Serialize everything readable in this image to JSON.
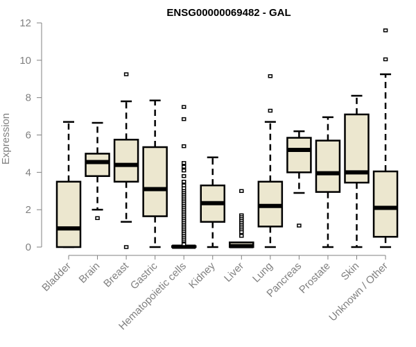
{
  "chart_data": {
    "type": "box",
    "title": "ENSG00000069482 - GAL",
    "xlabel": "",
    "ylabel": "Expression",
    "ylim": [
      0,
      12
    ],
    "yticks": [
      0,
      2,
      4,
      6,
      8,
      10,
      12
    ],
    "grid": false,
    "colors": {
      "box_fill": "#ece7cf",
      "stroke": "#000000",
      "axis": "#808080",
      "label": "#808080",
      "title": "#000000"
    },
    "categories": [
      "Bladder",
      "Brain",
      "Breast",
      "Gastric",
      "Hematopoietic cells",
      "Kidney",
      "Liver",
      "Lung",
      "Pancreas",
      "Prostate",
      "Skin",
      "Unknown / Other"
    ],
    "boxes": [
      {
        "min": 0,
        "q1": 0,
        "median": 1.0,
        "q3": 3.5,
        "max": 6.7,
        "outliers": []
      },
      {
        "min": 2.0,
        "q1": 3.8,
        "median": 4.55,
        "q3": 5.0,
        "max": 6.65,
        "outliers": [
          1.55
        ]
      },
      {
        "min": 1.35,
        "q1": 3.5,
        "median": 4.4,
        "q3": 5.75,
        "max": 7.8,
        "outliers": [
          9.25,
          0
        ]
      },
      {
        "min": 0,
        "q1": 1.65,
        "median": 3.1,
        "q3": 5.35,
        "max": 7.85,
        "outliers": []
      },
      {
        "min": 0,
        "q1": 0,
        "median": 0.02,
        "q3": 0.05,
        "max": 0.08,
        "outliers": [
          7.5,
          6.85,
          5.4,
          4.5,
          4.3,
          4.1,
          3.8,
          3.5,
          3.3,
          3.15,
          3.0,
          2.9,
          2.8,
          2.7,
          2.6,
          2.5,
          2.4,
          2.3,
          2.2,
          2.1,
          2.0,
          1.9,
          1.8,
          1.7,
          1.6,
          1.5,
          1.4,
          1.3,
          1.2,
          1.1,
          1.0,
          0.9,
          0.8,
          0.7,
          0.6,
          0.5,
          0.4,
          0.3,
          0.2,
          0.15
        ]
      },
      {
        "min": 0,
        "q1": 1.35,
        "median": 2.35,
        "q3": 3.3,
        "max": 4.8,
        "outliers": []
      },
      {
        "min": 0,
        "q1": 0,
        "median": 0.05,
        "q3": 0.25,
        "max": 0.25,
        "outliers": [
          3.0,
          1.7,
          1.6,
          1.5,
          1.4,
          1.3,
          1.2,
          1.1,
          1.0,
          0.9,
          0.8,
          0.6
        ]
      },
      {
        "min": 0,
        "q1": 1.1,
        "median": 2.2,
        "q3": 3.5,
        "max": 6.7,
        "outliers": [
          7.3,
          9.15
        ]
      },
      {
        "min": 2.9,
        "q1": 4.0,
        "median": 5.2,
        "q3": 5.85,
        "max": 6.2,
        "outliers": [
          1.15
        ]
      },
      {
        "min": 0,
        "q1": 2.95,
        "median": 3.95,
        "q3": 5.7,
        "max": 6.95,
        "outliers": []
      },
      {
        "min": 0,
        "q1": 3.45,
        "median": 4.0,
        "q3": 7.1,
        "max": 8.1,
        "outliers": []
      },
      {
        "min": 0,
        "q1": 0.55,
        "median": 2.1,
        "q3": 4.05,
        "max": 9.25,
        "outliers": [
          10.05,
          11.6
        ]
      }
    ]
  }
}
